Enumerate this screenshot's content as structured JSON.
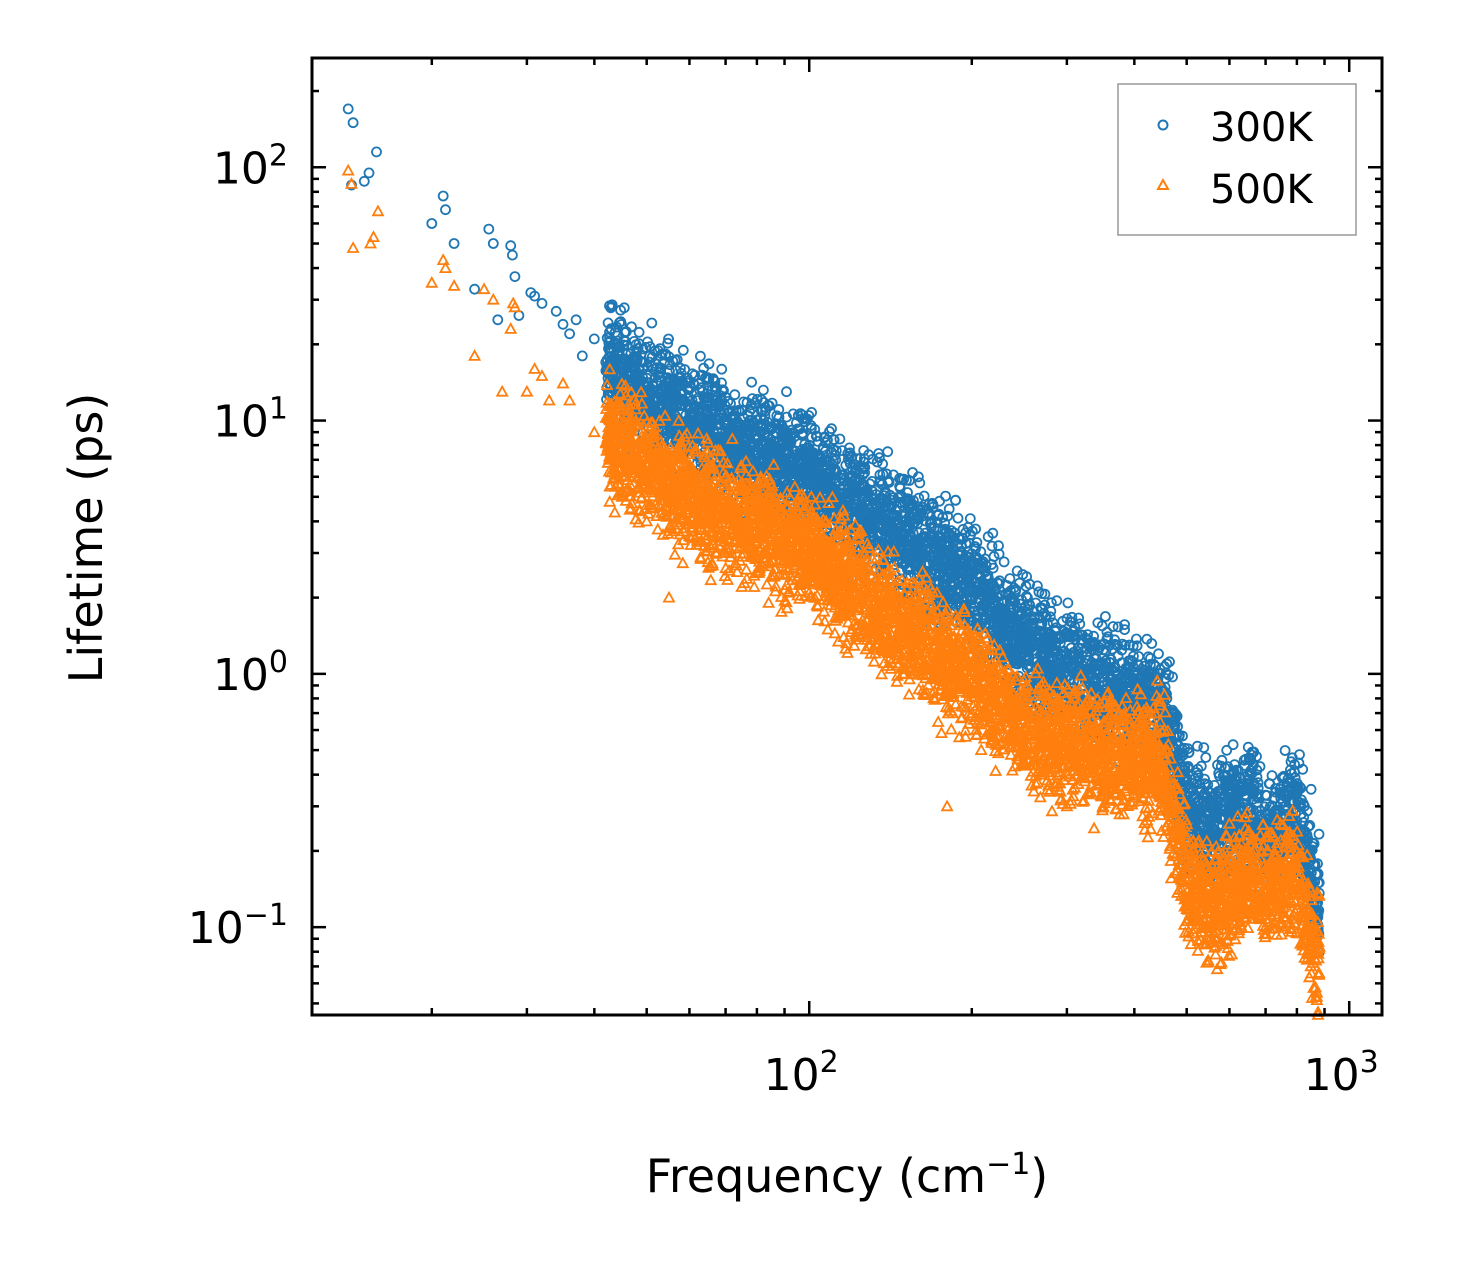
{
  "chart_data": {
    "type": "scatter",
    "title": "",
    "xlabel": "Frequency (cm",
    "xlabel_sup": "−1",
    "xlabel_close": ")",
    "ylabel": "Lifetime (ps)",
    "xscale": "log",
    "yscale": "log",
    "xlim": [
      12,
      1150
    ],
    "ylim": [
      0.045,
      270
    ],
    "x_ticks": [
      {
        "value": 100,
        "base": "10",
        "exp": "2"
      },
      {
        "value": 1000,
        "base": "10",
        "exp": "3"
      }
    ],
    "y_ticks": [
      {
        "value": 0.1,
        "base": "10",
        "exp": "−1"
      },
      {
        "value": 1,
        "base": "10",
        "exp": "0"
      },
      {
        "value": 10,
        "base": "10",
        "exp": "1"
      },
      {
        "value": 100,
        "base": "10",
        "exp": "2"
      }
    ],
    "legend_position": "top-right",
    "series": [
      {
        "name": "300K",
        "marker": "circle",
        "color": "#1f77b4",
        "representative_trend": [
          [
            14,
            150
          ],
          [
            20,
            65
          ],
          [
            30,
            30
          ],
          [
            45,
            15
          ],
          [
            60,
            10
          ],
          [
            100,
            6
          ],
          [
            150,
            3.5
          ],
          [
            200,
            2.3
          ],
          [
            250,
            1.3
          ],
          [
            400,
            0.8
          ],
          [
            450,
            0.75
          ],
          [
            500,
            0.3
          ],
          [
            550,
            0.25
          ],
          [
            650,
            0.3
          ],
          [
            700,
            0.22
          ],
          [
            800,
            0.3
          ],
          [
            880,
            0.12
          ]
        ],
        "points": [
          [
            14,
            170
          ],
          [
            14.3,
            150
          ],
          [
            14.2,
            85
          ],
          [
            15,
            88
          ],
          [
            15.3,
            95
          ],
          [
            15.8,
            115
          ],
          [
            20,
            60
          ],
          [
            21,
            77
          ],
          [
            21.2,
            68
          ],
          [
            22,
            50
          ],
          [
            24,
            33
          ],
          [
            25.5,
            57
          ],
          [
            26,
            50
          ],
          [
            26.5,
            25
          ],
          [
            28,
            49
          ],
          [
            28.2,
            45
          ],
          [
            28.5,
            37
          ],
          [
            29,
            26
          ],
          [
            30.5,
            32
          ],
          [
            31,
            31
          ],
          [
            32,
            29
          ],
          [
            34,
            27
          ],
          [
            35,
            24
          ],
          [
            36,
            22
          ],
          [
            37,
            25
          ],
          [
            38,
            18
          ],
          [
            40,
            21
          ],
          [
            42,
            17
          ],
          [
            45,
            16
          ],
          [
            50,
            12
          ],
          [
            55,
            10
          ],
          [
            60,
            11
          ],
          [
            65,
            12
          ],
          [
            70,
            9
          ],
          [
            80,
            8.5
          ],
          [
            90,
            7
          ],
          [
            100,
            8
          ],
          [
            110,
            7.5
          ],
          [
            120,
            6.5
          ],
          [
            130,
            5
          ],
          [
            150,
            4
          ],
          [
            170,
            3.5
          ],
          [
            190,
            3.4
          ],
          [
            200,
            2.2
          ],
          [
            220,
            1.7
          ],
          [
            250,
            1.5
          ],
          [
            300,
            1.2
          ],
          [
            350,
            1.1
          ],
          [
            400,
            0.9
          ],
          [
            440,
            0.85
          ],
          [
            480,
            0.45
          ],
          [
            520,
            0.2
          ],
          [
            600,
            0.35
          ],
          [
            650,
            0.4
          ],
          [
            700,
            0.28
          ],
          [
            780,
            0.45
          ],
          [
            820,
            0.42
          ],
          [
            850,
            0.35
          ],
          [
            880,
            0.15
          ]
        ]
      },
      {
        "name": "500K",
        "marker": "triangle",
        "color": "#ff7f0e",
        "representative_trend": [
          [
            14,
            90
          ],
          [
            20,
            35
          ],
          [
            30,
            20
          ],
          [
            45,
            8
          ],
          [
            60,
            5
          ],
          [
            100,
            3
          ],
          [
            150,
            1.5
          ],
          [
            200,
            1
          ],
          [
            250,
            0.6
          ],
          [
            400,
            0.45
          ],
          [
            450,
            0.45
          ],
          [
            500,
            0.15
          ],
          [
            550,
            0.12
          ],
          [
            650,
            0.15
          ],
          [
            700,
            0.15
          ],
          [
            800,
            0.15
          ],
          [
            880,
            0.07
          ]
        ],
        "points": [
          [
            14,
            97
          ],
          [
            14.2,
            86
          ],
          [
            14.3,
            48
          ],
          [
            15.4,
            50
          ],
          [
            15.6,
            53
          ],
          [
            15.9,
            67
          ],
          [
            20,
            35
          ],
          [
            21,
            43
          ],
          [
            21.2,
            40
          ],
          [
            22,
            34
          ],
          [
            24,
            18
          ],
          [
            25,
            33
          ],
          [
            26,
            30
          ],
          [
            27,
            13
          ],
          [
            28,
            23
          ],
          [
            28.3,
            29
          ],
          [
            28.5,
            28
          ],
          [
            30,
            13
          ],
          [
            31,
            16
          ],
          [
            32,
            15
          ],
          [
            33,
            12
          ],
          [
            35,
            14
          ],
          [
            36,
            12
          ],
          [
            40,
            9
          ],
          [
            43,
            7
          ],
          [
            45,
            5
          ],
          [
            50,
            4
          ],
          [
            55,
            2
          ],
          [
            60,
            3.5
          ],
          [
            70,
            3
          ],
          [
            80,
            2.5
          ],
          [
            100,
            2.5
          ],
          [
            110,
            2
          ],
          [
            120,
            1.5
          ],
          [
            130,
            1.2
          ],
          [
            150,
            1
          ],
          [
            170,
            0.8
          ],
          [
            180,
            0.3
          ],
          [
            200,
            0.7
          ],
          [
            250,
            0.45
          ],
          [
            300,
            0.3
          ],
          [
            350,
            0.3
          ],
          [
            400,
            0.35
          ],
          [
            450,
            0.4
          ],
          [
            500,
            0.13
          ],
          [
            550,
            0.12
          ],
          [
            600,
            0.13
          ],
          [
            650,
            0.18
          ],
          [
            700,
            0.1
          ],
          [
            800,
            0.2
          ],
          [
            850,
            0.09
          ],
          [
            880,
            0.065
          ]
        ]
      }
    ]
  }
}
